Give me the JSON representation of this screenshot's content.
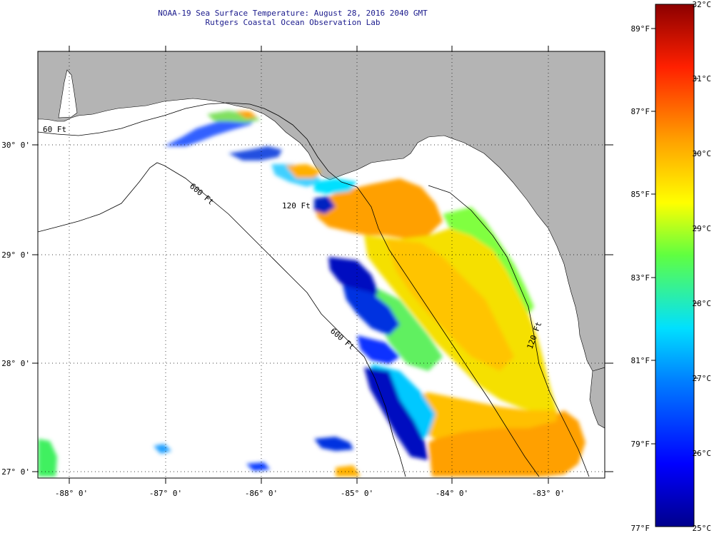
{
  "title": {
    "line1": "NOAA-19 Sea Surface Temperature:  August 28, 2016 2040 GMT",
    "line2": "Rutgers Coastal Ocean Observation Lab"
  },
  "map": {
    "lon_ticks": [
      "-88° 0'",
      "-87° 0'",
      "-86° 0'",
      "-85° 0'",
      "-84° 0'",
      "-83° 0'"
    ],
    "lat_ticks": [
      "30° 0'",
      "29° 0'",
      "28° 0'",
      "27° 0'"
    ],
    "contour_labels": [
      "60 Ft",
      "120 Ft",
      "600 Ft",
      "600 Ft",
      "120 Ft"
    ],
    "colors": {
      "land": "#b4b4b4",
      "water_nodata": "#ffffff"
    }
  },
  "colorbar": {
    "f_labels": [
      "89°F",
      "87°F",
      "85°F",
      "83°F",
      "81°F",
      "79°F",
      "77°F"
    ],
    "c_labels": [
      "32°C",
      "31°C",
      "30°C",
      "29°C",
      "28°C",
      "27°C",
      "26°C",
      "25°C"
    ],
    "colors": [
      "#00008c",
      "#0000ff",
      "#0080ff",
      "#00e0ff",
      "#40ff40",
      "#ffff00",
      "#ffa000",
      "#ff2000",
      "#8c0000"
    ]
  }
}
